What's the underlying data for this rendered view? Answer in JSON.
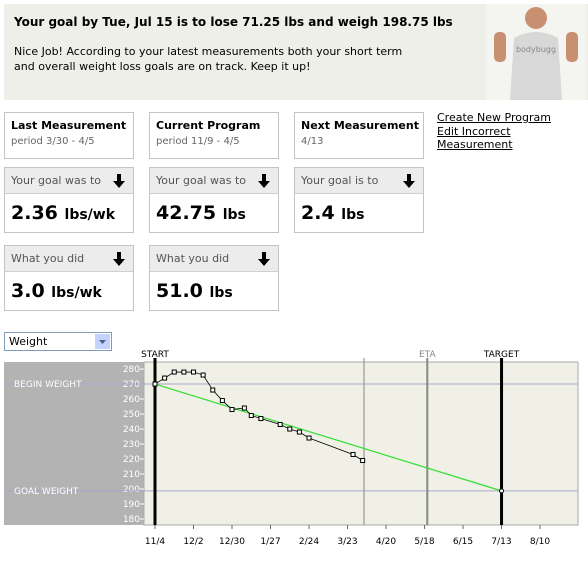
{
  "banner": {
    "title": "Your goal by Tue, Jul 15 is to lose 71.25 lbs and weigh 198.75 lbs",
    "message": "Nice Job! According to your latest measurements both your short term and overall weight loss goals are on track. Keep it up!",
    "shirt": "bodybugg"
  },
  "links": [
    "Create New Program",
    "Edit Incorrect Measurement"
  ],
  "cards": [
    {
      "title": "Last Measurement",
      "subtitle": "period 3/30 - 4/5"
    },
    {
      "title": "Current Program",
      "subtitle": "period 11/9 - 4/5"
    },
    {
      "title": "Next Measurement",
      "subtitle": "4/13"
    }
  ],
  "goal_row": [
    {
      "label": "Your goal was to",
      "value": "2.36",
      "unit": "lbs/wk"
    },
    {
      "label": "Your goal was to",
      "value": "42.75",
      "unit": "lbs"
    },
    {
      "label": "Your goal is to",
      "value": "2.4",
      "unit": "lbs"
    }
  ],
  "did_row": [
    {
      "label": "What you did",
      "value": "3.0",
      "unit": "lbs/wk"
    },
    {
      "label": "What you did",
      "value": "51.0",
      "unit": "lbs"
    }
  ],
  "select": {
    "value": "Weight"
  },
  "chart_data": {
    "type": "line",
    "x": [
      0,
      7,
      14,
      21,
      28,
      35,
      42,
      49,
      56,
      65,
      70,
      77,
      91,
      98,
      105,
      112,
      144,
      151
    ],
    "series": [
      {
        "name": "Weight",
        "color": "#000000",
        "values": [
          270,
          274,
          278,
          278,
          278,
          276,
          266,
          259,
          253,
          254,
          249,
          247,
          243,
          240,
          238,
          234,
          223,
          219
        ]
      }
    ],
    "goal_line": {
      "color": "#33dd33",
      "x": [
        0,
        252
      ],
      "values": [
        270,
        198.75
      ]
    },
    "level_lines": [
      {
        "label": "BEGIN WEIGHT",
        "value": 270
      },
      {
        "label": "GOAL WEIGHT",
        "value": 198.75
      }
    ],
    "markers": [
      {
        "label": "START",
        "x": 0
      },
      {
        "x": 152
      },
      {
        "label": "ETA",
        "x": 198
      },
      {
        "label": "TARGET",
        "x": 252
      }
    ],
    "xlim": [
      -8,
      307.6
    ],
    "ylim": [
      176,
      284.7
    ],
    "xticks": [
      {
        "value": 0,
        "label": "11/4"
      },
      {
        "value": 28,
        "label": "12/2"
      },
      {
        "value": 56,
        "label": "12/30"
      },
      {
        "value": 84,
        "label": "1/27"
      },
      {
        "value": 112,
        "label": "2/24"
      },
      {
        "value": 140,
        "label": "3/23"
      },
      {
        "value": 168,
        "label": "4/20"
      },
      {
        "value": 196,
        "label": "5/18"
      },
      {
        "value": 224,
        "label": "6/15"
      },
      {
        "value": 252,
        "label": "7/13"
      },
      {
        "value": 280,
        "label": "8/10"
      }
    ],
    "yticks": [
      180,
      190,
      200,
      210,
      220,
      230,
      240,
      250,
      260,
      270,
      280
    ]
  }
}
